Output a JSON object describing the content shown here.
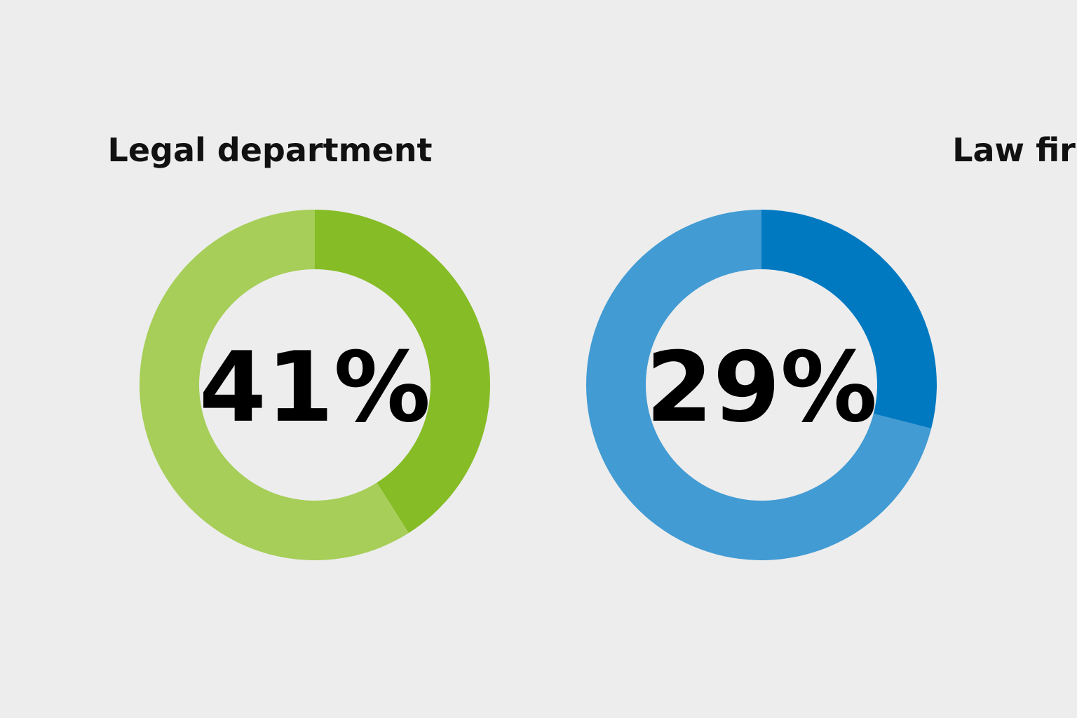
{
  "chart_data": [
    {
      "type": "pie",
      "variant": "donut",
      "title": "Legal department",
      "value_label": "41%",
      "slices": [
        {
          "value": 41,
          "color": "#86bc25"
        },
        {
          "value": 59,
          "color": "#a6ce58"
        }
      ]
    },
    {
      "type": "pie",
      "variant": "donut",
      "title": "Law firm",
      "value_label": "29%",
      "slices": [
        {
          "value": 29,
          "color": "#0079c1"
        },
        {
          "value": 71,
          "color": "#429bd3"
        }
      ]
    }
  ]
}
